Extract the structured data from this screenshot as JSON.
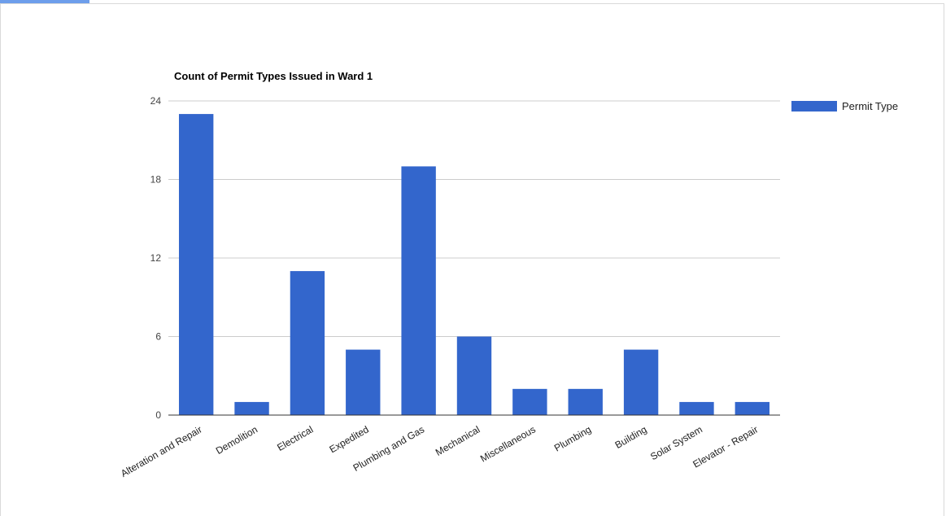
{
  "accent_color": "#6d9eeb",
  "chart_data": {
    "type": "bar",
    "title": "Count of Permit Types Issued in Ward 1",
    "xlabel": "",
    "ylabel": "",
    "categories": [
      "Alteration and Repair",
      "Demolition",
      "Electrical",
      "Expedited",
      "Plumbing and Gas",
      "Mechanical",
      "Miscellaneous",
      "Plumbing",
      "Building",
      "Solar System",
      "Elevator - Repair"
    ],
    "series": [
      {
        "name": "Permit Type",
        "color": "#3366cc",
        "values": [
          23,
          1,
          11,
          5,
          19,
          6,
          2,
          2,
          5,
          1,
          1
        ]
      }
    ],
    "ylim": [
      0,
      24
    ],
    "yticks": [
      0,
      6,
      12,
      18,
      24
    ],
    "grid": true,
    "legend_position": "right"
  }
}
